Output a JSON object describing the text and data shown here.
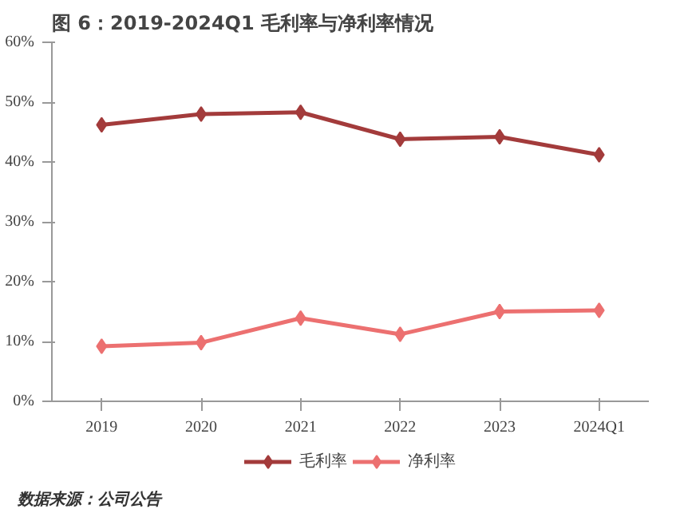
{
  "chart_data": {
    "type": "line",
    "title": "图 6：2019-2024Q1 毛利率与净利率情况",
    "categories": [
      "2019",
      "2020",
      "2021",
      "2022",
      "2023",
      "2024Q1"
    ],
    "series": [
      {
        "name": "毛利率",
        "color": "#a33b3b",
        "values": [
          46.2,
          48.0,
          48.3,
          43.8,
          44.2,
          41.2
        ]
      },
      {
        "name": "净利率",
        "color": "#ec7070",
        "values": [
          9.2,
          9.8,
          13.9,
          11.2,
          15.0,
          15.2
        ]
      }
    ],
    "ylim": [
      0,
      60
    ],
    "yticks": [
      {
        "value": 0,
        "label": "0%"
      },
      {
        "value": 10,
        "label": "10%"
      },
      {
        "value": 20,
        "label": "20%"
      },
      {
        "value": 30,
        "label": "30%"
      },
      {
        "value": 40,
        "label": "40%"
      },
      {
        "value": 50,
        "label": "50%"
      },
      {
        "value": 60,
        "label": "60%"
      }
    ],
    "marker": "diamond",
    "legend": "bottom",
    "grid": false,
    "annotations": [
      "数据来源：公司公告"
    ]
  }
}
